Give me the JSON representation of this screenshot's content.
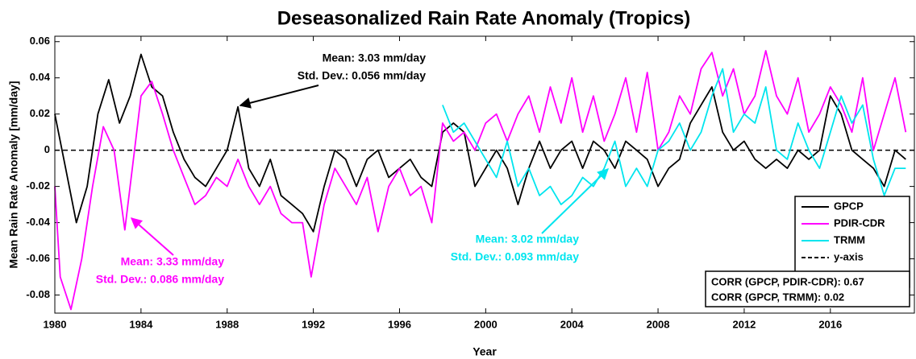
{
  "chart_data": {
    "type": "line",
    "title": "Deseasonalized Rain Rate Anomaly (Tropics)",
    "x_label": "Year",
    "y_label": "Mean Rain Rate Anomaly [mm/day]",
    "xlim": [
      1980,
      2019.9
    ],
    "ylim": [
      -0.09,
      0.063
    ],
    "xticks": [
      1980,
      1984,
      1988,
      1992,
      1996,
      2000,
      2004,
      2008,
      2012,
      2016
    ],
    "yticks": [
      -0.08,
      -0.06,
      -0.04,
      -0.02,
      0,
      0.02,
      0.04,
      0.06
    ],
    "legend_position": "right",
    "series": [
      {
        "name": "GPCP",
        "color": "#000000",
        "x": [
          1980,
          1980.5,
          1981,
          1981.5,
          1982,
          1982.5,
          1983,
          1983.5,
          1984,
          1984.5,
          1985,
          1985.5,
          1986,
          1986.5,
          1987,
          1987.5,
          1988,
          1988.5,
          1989,
          1989.5,
          1990,
          1990.5,
          1991,
          1991.5,
          1992,
          1992.5,
          1993,
          1993.5,
          1994,
          1994.5,
          1995,
          1995.5,
          1996,
          1996.5,
          1997,
          1997.5,
          1998,
          1998.5,
          1999,
          1999.5,
          2000,
          2000.5,
          2001,
          2001.5,
          2002,
          2002.5,
          2003,
          2003.5,
          2004,
          2004.5,
          2005,
          2005.5,
          2006,
          2006.5,
          2007,
          2007.5,
          2008,
          2008.5,
          2009,
          2009.5,
          2010,
          2010.5,
          2011,
          2011.5,
          2012,
          2012.5,
          2013,
          2013.5,
          2014,
          2014.5,
          2015,
          2015.5,
          2016,
          2016.5,
          2017,
          2017.5,
          2018,
          2018.5,
          2019,
          2019.5
        ],
        "values": [
          0.02,
          -0.01,
          -0.04,
          -0.02,
          0.02,
          0.039,
          0.015,
          0.03,
          0.053,
          0.035,
          0.03,
          0.01,
          -0.005,
          -0.015,
          -0.02,
          -0.01,
          0.0,
          0.024,
          -0.01,
          -0.02,
          -0.005,
          -0.025,
          -0.03,
          -0.035,
          -0.045,
          -0.02,
          0.0,
          -0.005,
          -0.02,
          -0.005,
          0.0,
          -0.015,
          -0.01,
          -0.005,
          -0.015,
          -0.02,
          0.01,
          0.015,
          0.01,
          -0.02,
          -0.01,
          0.0,
          -0.01,
          -0.03,
          -0.01,
          0.005,
          -0.01,
          0.0,
          0.005,
          -0.01,
          0.005,
          0.0,
          -0.01,
          0.005,
          0.0,
          -0.005,
          -0.02,
          -0.01,
          -0.005,
          0.015,
          0.025,
          0.035,
          0.01,
          0.0,
          0.005,
          -0.005,
          -0.01,
          -0.005,
          -0.01,
          0.0,
          -0.005,
          0.0,
          0.03,
          0.02,
          0.0,
          -0.005,
          -0.01,
          -0.02,
          0.0,
          -0.005
        ]
      },
      {
        "name": "PDIR-CDR",
        "color": "#ff00ff",
        "x": [
          1980,
          1980.25,
          1980.75,
          1981.25,
          1981.75,
          1982.25,
          1982.75,
          1983.25,
          1983.75,
          1984,
          1984.5,
          1985,
          1985.5,
          1986,
          1986.5,
          1987,
          1987.5,
          1988,
          1988.5,
          1989,
          1989.5,
          1990,
          1990.5,
          1991,
          1991.5,
          1991.9,
          1992.5,
          1993,
          1993.5,
          1994,
          1994.5,
          1995,
          1995.5,
          1996,
          1996.5,
          1997,
          1997.5,
          1998,
          1998.5,
          1999,
          1999.5,
          2000,
          2000.5,
          2001,
          2001.5,
          2002,
          2002.5,
          2003,
          2003.5,
          2004,
          2004.5,
          2005,
          2005.5,
          2006,
          2006.5,
          2007,
          2007.5,
          2008,
          2008.5,
          2009,
          2009.5,
          2010,
          2010.5,
          2011,
          2011.5,
          2012,
          2012.5,
          2013,
          2013.5,
          2014,
          2014.5,
          2015,
          2015.5,
          2016,
          2016.5,
          2017,
          2017.5,
          2018,
          2018.5,
          2019,
          2019.5
        ],
        "values": [
          -0.02,
          -0.07,
          -0.088,
          -0.06,
          -0.02,
          0.013,
          0.0,
          -0.044,
          0.005,
          0.03,
          0.038,
          0.02,
          0.0,
          -0.015,
          -0.03,
          -0.025,
          -0.015,
          -0.02,
          -0.005,
          -0.02,
          -0.03,
          -0.02,
          -0.035,
          -0.04,
          -0.04,
          -0.07,
          -0.03,
          -0.01,
          -0.02,
          -0.03,
          -0.015,
          -0.045,
          -0.02,
          -0.01,
          -0.025,
          -0.02,
          -0.04,
          0.015,
          0.005,
          0.01,
          0.0,
          0.015,
          0.02,
          0.005,
          0.02,
          0.03,
          0.01,
          0.035,
          0.015,
          0.04,
          0.01,
          0.03,
          0.005,
          0.02,
          0.04,
          0.01,
          0.043,
          0.0,
          0.01,
          0.03,
          0.02,
          0.045,
          0.054,
          0.03,
          0.045,
          0.02,
          0.03,
          0.055,
          0.03,
          0.02,
          0.04,
          0.01,
          0.02,
          0.035,
          0.025,
          0.01,
          0.04,
          0.0,
          0.02,
          0.04,
          0.01
        ]
      },
      {
        "name": "TRMM",
        "color": "#00e5ee",
        "x": [
          1998,
          1998.5,
          1999,
          1999.5,
          2000,
          2000.5,
          2001,
          2001.5,
          2002,
          2002.5,
          2003,
          2003.5,
          2004,
          2004.5,
          2005,
          2005.5,
          2006,
          2006.5,
          2007,
          2007.5,
          2008,
          2008.5,
          2009,
          2009.5,
          2010,
          2010.5,
          2011,
          2011.5,
          2012,
          2012.5,
          2013,
          2013.5,
          2014,
          2014.5,
          2015,
          2015.5,
          2016,
          2016.5,
          2017,
          2017.5,
          2018,
          2018.5,
          2019,
          2019.5
        ],
        "values": [
          0.025,
          0.01,
          0.015,
          0.005,
          -0.005,
          -0.015,
          0.005,
          -0.02,
          -0.01,
          -0.025,
          -0.02,
          -0.03,
          -0.025,
          -0.015,
          -0.02,
          -0.01,
          0.005,
          -0.02,
          -0.01,
          -0.02,
          0.0,
          0.005,
          0.015,
          0.0,
          0.01,
          0.03,
          0.045,
          0.01,
          0.02,
          0.015,
          0.035,
          0.0,
          -0.005,
          0.015,
          0.0,
          -0.01,
          0.01,
          0.03,
          0.015,
          0.025,
          -0.005,
          -0.025,
          -0.01,
          -0.01
        ]
      }
    ],
    "reference_line": {
      "name": "y-axis",
      "value": 0,
      "color": "#000000"
    },
    "annotations": [
      {
        "color": "#000000",
        "lines": [
          "Mean: 3.03 mm/day",
          "Std. Dev.: 0.056 mm/day"
        ]
      },
      {
        "color": "#ff00ff",
        "lines": [
          "Mean: 3.33 mm/day",
          "Std. Dev.: 0.086 mm/day"
        ]
      },
      {
        "color": "#00e5ee",
        "lines": [
          "Mean: 3.02 mm/day",
          "Std. Dev.: 0.093 mm/day"
        ]
      }
    ],
    "stats_box": [
      "CORR (GPCP, PDIR-CDR): 0.67",
      "CORR (GPCP, TRMM): 0.02"
    ]
  }
}
